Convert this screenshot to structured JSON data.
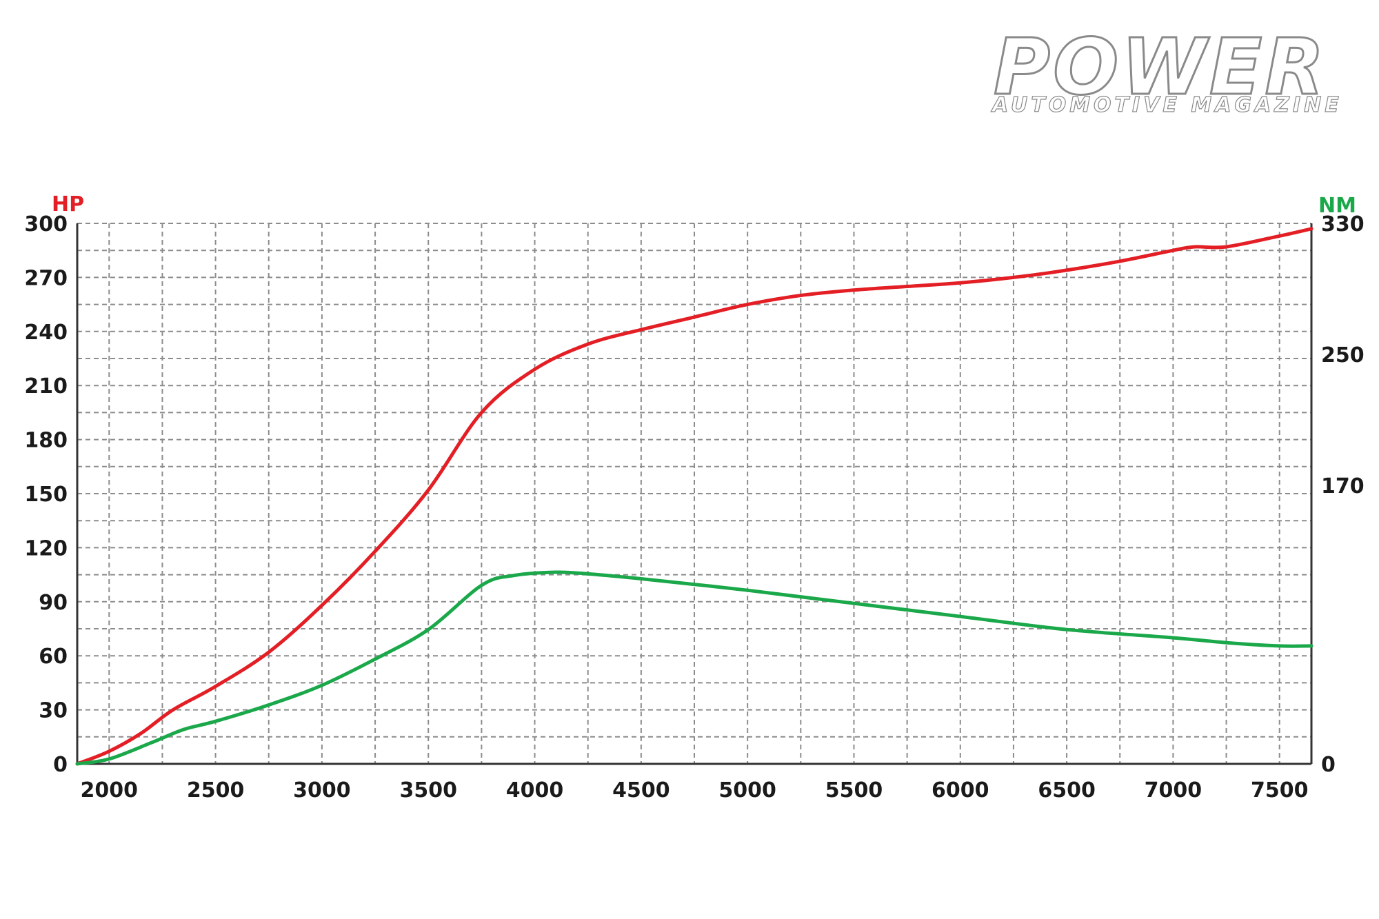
{
  "logo": {
    "title": "POWER",
    "subtitle": "AUTOMOTIVE MAGAZINE"
  },
  "chart_data": {
    "type": "line",
    "title": "",
    "xlabel": "",
    "ylabel_left": "HP",
    "ylabel_right": "NM",
    "xlim": [
      1850,
      7650
    ],
    "x_ticks": [
      "2000",
      "2500",
      "3000",
      "3500",
      "4000",
      "4500",
      "5000",
      "5500",
      "6000",
      "6500",
      "7000",
      "7500"
    ],
    "ylim_left": [
      0,
      300
    ],
    "y_ticks_left": [
      "0",
      "30",
      "60",
      "90",
      "120",
      "150",
      "180",
      "210",
      "240",
      "270",
      "300"
    ],
    "ylim_right": [
      0,
      330
    ],
    "y_ticks_right": [
      "0",
      "170",
      "250",
      "330"
    ],
    "grid": true,
    "colors": {
      "hp": "#e31e24",
      "nm": "#1aa84a",
      "grid": "#8c8c8c",
      "axis": "#333333"
    },
    "series": [
      {
        "name": "HP",
        "axis": "left",
        "color": "#e31e24",
        "x": [
          1850,
          2000,
          2150,
          2300,
          2500,
          2750,
          3000,
          3250,
          3500,
          3750,
          4000,
          4250,
          4500,
          4750,
          5000,
          5250,
          5500,
          5750,
          6000,
          6250,
          6500,
          6750,
          7000,
          7100,
          7250,
          7500,
          7650
        ],
        "values": [
          0,
          7,
          17,
          30,
          43,
          62,
          88,
          118,
          152,
          195,
          219,
          233,
          241,
          248,
          255,
          260,
          263,
          265,
          267,
          270,
          274,
          279,
          285,
          287,
          287,
          293,
          297
        ]
      },
      {
        "name": "NM",
        "axis": "right",
        "color": "#1aa84a",
        "x": [
          1850,
          2000,
          2200,
          2350,
          2500,
          2750,
          3000,
          3250,
          3500,
          3750,
          3900,
          4100,
          4250,
          4500,
          5000,
          5500,
          6000,
          6500,
          7000,
          7250,
          7500,
          7650
        ],
        "values": [
          0,
          3,
          13,
          21,
          26,
          36,
          48,
          64,
          82,
          109,
          115,
          117,
          116,
          113,
          106,
          98,
          90,
          82,
          77,
          74,
          72,
          72
        ]
      }
    ]
  }
}
